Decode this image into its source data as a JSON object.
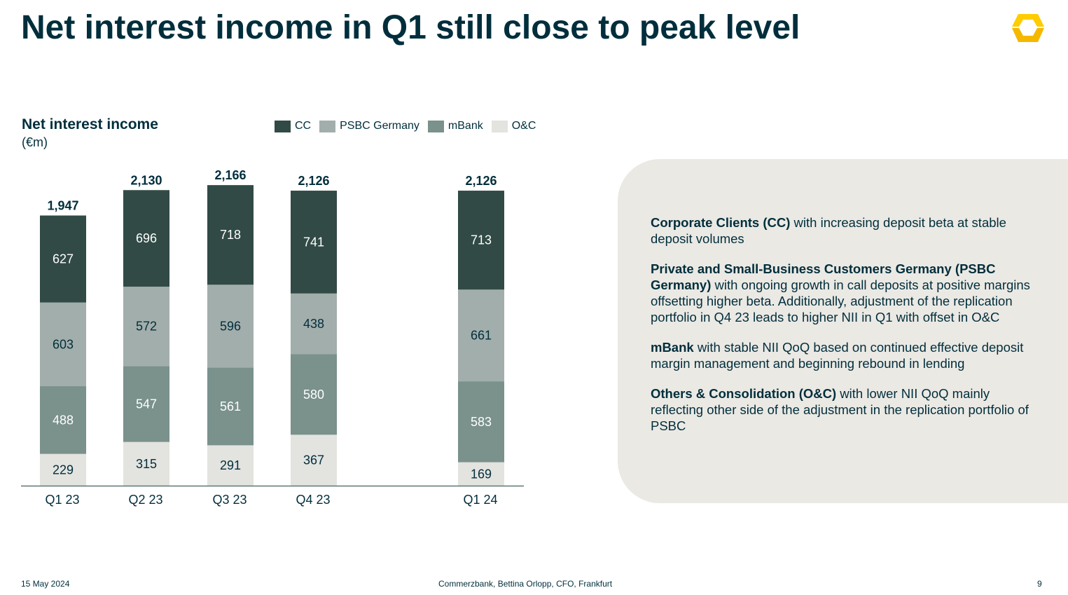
{
  "title": "Net interest income in Q1 still close to peak level",
  "logo": {
    "icon": "commerzbank-ribbon-icon",
    "color": "#ffcc00"
  },
  "chart_data": {
    "type": "bar",
    "stacked": true,
    "title": "Net interest income",
    "unit": "(€m)",
    "categories": [
      "Q1 23",
      "Q2 23",
      "Q3 23",
      "Q4 23",
      "Q1 24"
    ],
    "totals": [
      "1,947",
      "2,130",
      "2,166",
      "2,126",
      "2,126"
    ],
    "series": [
      {
        "name": "O&C",
        "color": "#e3e3df",
        "label_color": "#002e3c",
        "values": [
          229,
          315,
          291,
          367,
          169
        ]
      },
      {
        "name": "mBank",
        "color": "#7a918c",
        "label_color": "#ffffff",
        "values": [
          488,
          547,
          561,
          580,
          583
        ]
      },
      {
        "name": "PSBC Germany",
        "color": "#a2aeab",
        "label_color": "#002e3c",
        "values": [
          603,
          572,
          596,
          438,
          661
        ]
      },
      {
        "name": "CC",
        "color": "#314a45",
        "label_color": "#ffffff",
        "values": [
          627,
          696,
          718,
          741,
          713
        ]
      }
    ],
    "legend_order": [
      "CC",
      "PSBC Germany",
      "mBank",
      "O&C"
    ],
    "legend_position": "top",
    "ylim": [
      0,
      2166
    ],
    "grid": false
  },
  "commentary": [
    {
      "bold": "Corporate Clients (CC)",
      "text": " with increasing deposit beta at stable deposit volumes"
    },
    {
      "bold": "Private and Small-Business Customers Germany (PSBC Germany)",
      "text": " with ongoing growth in call deposits at positive margins offsetting higher beta. Additionally, adjustment of the replication portfolio in Q4 23 leads to higher NII in Q1 with offset in O&C"
    },
    {
      "bold": "mBank",
      "text": " with stable NII QoQ based on continued effective deposit margin management and beginning rebound in lending"
    },
    {
      "bold": "Others & Consolidation (O&C)",
      "text": " with lower NII QoQ mainly reflecting other side of the adjustment in the replication portfolio of PSBC"
    }
  ],
  "footer": {
    "date": "15 May 2024",
    "center": "Commerzbank, Bettina Orlopp, CFO, Frankfurt",
    "page": "9"
  }
}
